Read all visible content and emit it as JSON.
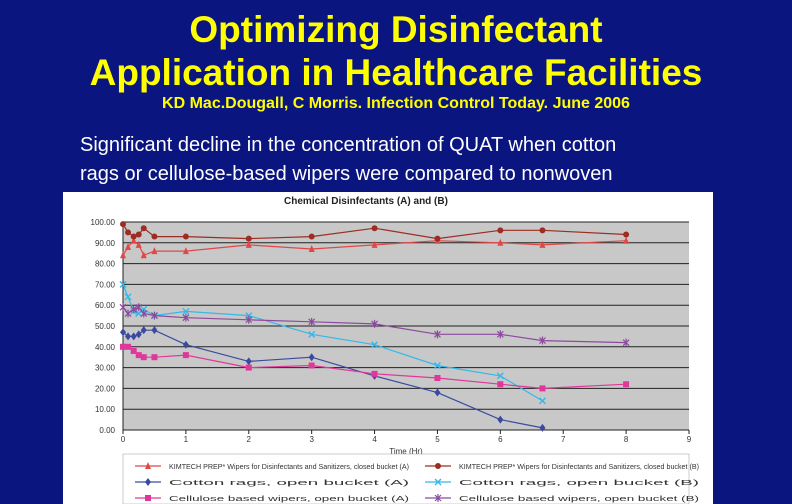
{
  "slide": {
    "title_line1": "Optimizing Disinfectant",
    "title_line2": "Application in Healthcare Facilities",
    "citation": "KD Mac.Dougall, C Morris. Infection Control Today. June 2006",
    "body_line1": "Significant decline in the concentration of QUAT when cotton",
    "body_line2": "rags or cellulose-based wipers were compared to nonwoven"
  },
  "colors": {
    "background": "#0b1580",
    "title": "#ffff00",
    "text": "#ffffff"
  },
  "chart_data": {
    "type": "line",
    "title": "Chemical Disinfectants (A) and (B)",
    "xlabel": "Time (Hr)",
    "ylabel": "",
    "xlim": [
      0,
      9
    ],
    "ylim": [
      0,
      100
    ],
    "xticks": [
      "0",
      "1",
      "2",
      "3",
      "4",
      "5",
      "6",
      "7",
      "8",
      "9"
    ],
    "yticks": [
      "0.00",
      "10.00",
      "20.00",
      "30.00",
      "40.00",
      "50.00",
      "60.00",
      "70.00",
      "80.00",
      "90.00",
      "100.00"
    ],
    "grid": "horizontal",
    "legend_position": "bottom",
    "series": [
      {
        "name": "KIMTECH PREP* Wipers for Disinfectants and Sanitizers, closed bucket (A)",
        "color": "#e04848",
        "marker": "triangle",
        "x": [
          0,
          0.08,
          0.17,
          0.25,
          0.33,
          0.5,
          1,
          2,
          3,
          4,
          5,
          6,
          6.67,
          8
        ],
        "y": [
          84,
          88,
          91,
          89,
          84,
          86,
          86,
          89,
          87,
          89,
          91,
          90,
          89,
          91
        ]
      },
      {
        "name": "KIMTECH PREP* Wipers for Disinfectants and Sanitizers, closed bucket (B)",
        "color": "#9c2d22",
        "marker": "circle",
        "x": [
          0,
          0.08,
          0.17,
          0.25,
          0.33,
          0.5,
          1,
          2,
          3,
          4,
          5,
          6,
          6.67,
          8
        ],
        "y": [
          99,
          95,
          93,
          94,
          97,
          93,
          93,
          92,
          93,
          97,
          92,
          96,
          96,
          94
        ]
      },
      {
        "name": "Cotton rags, open bucket (A)",
        "color": "#3a4aa0",
        "marker": "diamond",
        "x": [
          0,
          0.08,
          0.17,
          0.25,
          0.33,
          0.5,
          1,
          2,
          3,
          4,
          5,
          6,
          6.67
        ],
        "y": [
          47,
          45,
          45,
          46,
          48,
          48,
          41,
          33,
          35,
          26,
          18,
          5,
          1
        ]
      },
      {
        "name": "Cotton rags, open bucket (B)",
        "color": "#35b8e8",
        "marker": "x",
        "x": [
          0,
          0.08,
          0.17,
          0.25,
          0.33,
          0.5,
          1,
          2,
          3,
          4,
          5,
          6,
          6.67
        ],
        "y": [
          70,
          64,
          57,
          56,
          58,
          55,
          57,
          55,
          46,
          41,
          31,
          26,
          14
        ]
      },
      {
        "name": "Cellulose based wipers, open bucket (A)",
        "color": "#e0389a",
        "marker": "square",
        "x": [
          0,
          0.08,
          0.17,
          0.25,
          0.33,
          0.5,
          1,
          2,
          3,
          4,
          5,
          6,
          6.67,
          8
        ],
        "y": [
          40,
          40,
          38,
          36,
          35,
          35,
          36,
          30,
          31,
          27,
          25,
          22,
          20,
          22
        ]
      },
      {
        "name": "Cellulose based wipers, open bucket (B)",
        "color": "#8c4a9c",
        "marker": "star",
        "x": [
          0,
          0.08,
          0.17,
          0.25,
          0.33,
          0.5,
          1,
          2,
          3,
          4,
          5,
          6,
          6.67,
          8
        ],
        "y": [
          59,
          56,
          58,
          59,
          56,
          55,
          54,
          53,
          52,
          51,
          46,
          46,
          43,
          42
        ]
      }
    ]
  }
}
